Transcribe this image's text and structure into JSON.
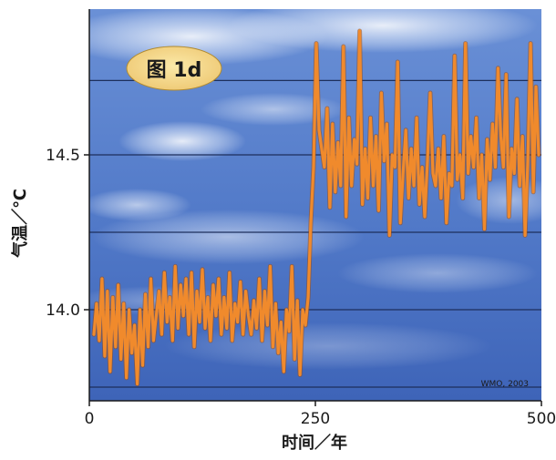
{
  "chart_data": {
    "type": "line",
    "title": "图 1d",
    "xlabel": "时间／年",
    "ylabel": "气温／℃",
    "credit": "WMO, 2003",
    "xlim": [
      0,
      500
    ],
    "ylim": [
      13.75,
      14.95
    ],
    "x_ticks": [
      {
        "value": 0,
        "label": "0"
      },
      {
        "value": 250,
        "label": "250"
      },
      {
        "value": 500,
        "label": "500"
      }
    ],
    "y_ticks": [
      {
        "value": 14.0,
        "label": "14.0"
      },
      {
        "value": 14.5,
        "label": "14.5"
      }
    ],
    "gridlines_y": [
      13.75,
      14.0,
      14.25,
      14.5,
      14.74
    ],
    "grid": true,
    "legend": "none",
    "colors": {
      "series": "#f08a2c",
      "series_outline": "#9a4a10",
      "sky_top": "#5f86cf",
      "sky_bottom": "#3f66bb",
      "title_badge": "#f5dc8c"
    },
    "series": [
      {
        "x": [
          5,
          8,
          11,
          14,
          17,
          20,
          23,
          26,
          29,
          32,
          35,
          38,
          41,
          44,
          47,
          50,
          53,
          56,
          59,
          62,
          65,
          68,
          71,
          74,
          77,
          80,
          83,
          86,
          89,
          92,
          95,
          98,
          101,
          104,
          107,
          110,
          113,
          116,
          119,
          122,
          125,
          128,
          131,
          134,
          137,
          140,
          143,
          146,
          149,
          152,
          155,
          158,
          161,
          164,
          167,
          170,
          173,
          176,
          179,
          182,
          185,
          188,
          191,
          194,
          197,
          200,
          203,
          206,
          209,
          212,
          215,
          218,
          221,
          224,
          227,
          230,
          233,
          236,
          239,
          242,
          245,
          248,
          251,
          254,
          257,
          260,
          263,
          266,
          269,
          272,
          275,
          278,
          281,
          284,
          287,
          290,
          293,
          296,
          299,
          302,
          305,
          308,
          311,
          314,
          317,
          320,
          323,
          326,
          329,
          332,
          335,
          338,
          341,
          344,
          347,
          350,
          353,
          356,
          359,
          362,
          365,
          368,
          371,
          374,
          377,
          380,
          383,
          386,
          389,
          392,
          395,
          398,
          401,
          404,
          407,
          410,
          413,
          416,
          419,
          422,
          425,
          428,
          431,
          434,
          437,
          440,
          443,
          446,
          449,
          452,
          455,
          458,
          461,
          464,
          467,
          470,
          473,
          476,
          479,
          482,
          485,
          488,
          491,
          494,
          497
        ],
        "y": [
          13.92,
          14.02,
          13.9,
          14.1,
          13.85,
          14.06,
          13.8,
          14.04,
          13.88,
          14.08,
          13.84,
          14.02,
          13.78,
          14.0,
          13.86,
          13.95,
          13.76,
          14.0,
          13.82,
          14.05,
          13.88,
          14.1,
          13.9,
          13.98,
          14.06,
          13.92,
          14.12,
          13.96,
          14.04,
          13.9,
          14.14,
          13.94,
          14.08,
          13.98,
          14.1,
          13.92,
          14.12,
          13.88,
          14.06,
          13.96,
          14.13,
          13.94,
          14.04,
          13.9,
          14.08,
          13.98,
          14.1,
          13.92,
          14.04,
          13.94,
          14.12,
          13.9,
          14.02,
          13.96,
          14.09,
          13.92,
          14.06,
          13.98,
          13.92,
          14.03,
          13.94,
          14.1,
          13.9,
          14.06,
          13.95,
          14.14,
          13.88,
          14.02,
          13.86,
          13.96,
          13.8,
          14.0,
          13.93,
          14.14,
          13.84,
          14.03,
          13.79,
          14.0,
          13.95,
          14.04,
          14.28,
          14.46,
          14.86,
          14.58,
          14.52,
          14.46,
          14.65,
          14.33,
          14.6,
          14.38,
          14.54,
          14.4,
          14.85,
          14.3,
          14.62,
          14.4,
          14.55,
          14.47,
          14.9,
          14.34,
          14.52,
          14.36,
          14.62,
          14.4,
          14.56,
          14.32,
          14.7,
          14.48,
          14.6,
          14.24,
          14.5,
          14.46,
          14.8,
          14.28,
          14.44,
          14.58,
          14.36,
          14.52,
          14.4,
          14.62,
          14.34,
          14.46,
          14.3,
          14.48,
          14.7,
          14.44,
          14.4,
          14.52,
          14.36,
          14.56,
          14.28,
          14.44,
          14.4,
          14.82,
          14.42,
          14.5,
          14.36,
          14.86,
          14.44,
          14.56,
          14.46,
          14.62,
          14.36,
          14.5,
          14.26,
          14.55,
          14.42,
          14.6,
          14.46,
          14.78,
          14.56,
          14.46,
          14.76,
          14.3,
          14.52,
          14.44,
          14.68,
          14.4,
          14.56,
          14.24,
          14.48,
          14.86,
          14.38,
          14.72,
          14.5
        ]
      }
    ]
  }
}
